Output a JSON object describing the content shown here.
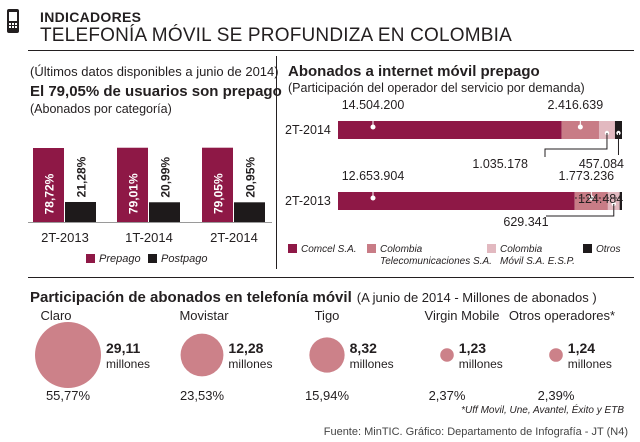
{
  "header": {
    "kicker": "INDICADORES",
    "title": "TELEFONÍA MÓVIL SE PROFUNDIZA EN COLOMBIA"
  },
  "colors": {
    "prepago": "#8e1846",
    "postpago": "#1e1a1b",
    "comcel": "#8e1846",
    "colombia_tel": "#c87c86",
    "colombia_movil": "#e2b9c0",
    "otros": "#1e1a1b",
    "circle": "#cc8189"
  },
  "footer": "Fuente: MinTIC. Gráfico: Departamento de Infografía - JT (N4)",
  "chart_data": [
    {
      "type": "bar",
      "caption": "(Últimos datos disponibles a junio de 2014)",
      "title": "El 79,05% de usuarios son prepago",
      "subtitle": "(Abonados por categoría)",
      "categories": [
        "2T-2013",
        "1T-2014",
        "2T-2014"
      ],
      "series": [
        {
          "name": "Prepago",
          "values": [
            78.72,
            79.01,
            79.05
          ],
          "labels": [
            "78,72%",
            "79,01%",
            "79,05%"
          ]
        },
        {
          "name": "Postpago",
          "values": [
            21.28,
            20.99,
            20.95
          ],
          "labels": [
            "21,28%",
            "20,99%",
            "20,95%"
          ]
        }
      ],
      "ylim": [
        0,
        100
      ],
      "legend": [
        "Prepago",
        "Postpago"
      ]
    },
    {
      "type": "bar",
      "orientation": "horizontal-stacked",
      "title": "Abonados a internet móvil prepago",
      "subtitle": "(Participación del operador del servicio por demanda)",
      "categories": [
        "2T-2014",
        "2T-2013"
      ],
      "series": [
        {
          "name": "Comcel S.A.",
          "values": [
            14504200,
            12653904
          ],
          "labels": [
            "14.504.200",
            "12.653.904"
          ]
        },
        {
          "name": "Colombia Telecomunicaciones S.A.",
          "values": [
            2416639,
            1773236
          ],
          "labels": [
            "2.416.639",
            "1.773.236"
          ]
        },
        {
          "name": "Colombia Móvil S.A. E.S.P.",
          "values": [
            1035178,
            629341
          ],
          "labels": [
            "1.035.178",
            "629.341"
          ]
        },
        {
          "name": "Otros",
          "values": [
            457084,
            124484
          ],
          "labels": [
            "457.084",
            "124.484"
          ]
        }
      ],
      "legend": [
        "Comcel S.A.",
        "Colombia Telecomunicaciones S.A.",
        "Colombia Móvil S.A. E.S.P.",
        "Otros"
      ]
    },
    {
      "type": "scatter",
      "title": "Participación de abonados en telefonía móvil",
      "subtitle": "(A junio de 2014 - Millones de abonados )",
      "unit": "millones",
      "operators": [
        {
          "name": "Claro",
          "value": 29.11,
          "value_label": "29,11",
          "share": 55.77,
          "share_label": "55,77%"
        },
        {
          "name": "Movistar",
          "value": 12.28,
          "value_label": "12,28",
          "share": 23.53,
          "share_label": "23,53%"
        },
        {
          "name": "Tigo",
          "value": 8.32,
          "value_label": "8,32",
          "share": 15.94,
          "share_label": "15,94%"
        },
        {
          "name": "Virgin Mobile",
          "value": 1.23,
          "value_label": "1,23",
          "share": 2.37,
          "share_label": "2,37%"
        },
        {
          "name": "Otros operadores*",
          "value": 1.24,
          "value_label": "1,24",
          "share": 2.39,
          "share_label": "2,39%"
        }
      ],
      "note": "*Uff Movil, Une, Avantel, Éxito y ETB"
    }
  ]
}
